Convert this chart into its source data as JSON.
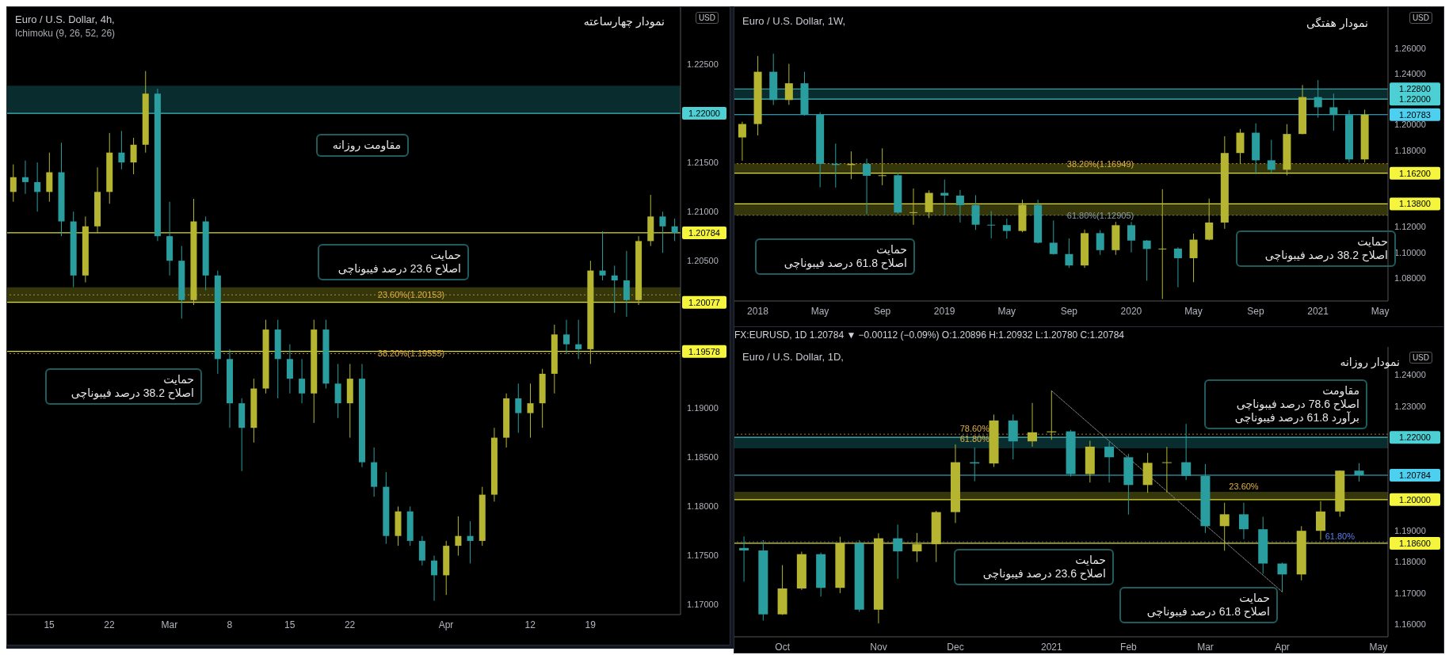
{
  "chart_data": [
    {
      "type": "candlestick",
      "title": "Euro / U.S. Dollar, 4h,",
      "subtitle": "Ichimoku (9, 26, 52, 26)",
      "ylabel": "USD",
      "annotations": [
        "نمودار چهارساعته",
        "مقاومت روزانه",
        "حمایت\nاصلاح 23.6 درصد فیبوناچی",
        "حمایت\nاصلاح 38.2 درصد فیبوناچی"
      ],
      "categories": [
        null,
        null,
        null,
        "15",
        null,
        null,
        null,
        null,
        "22",
        null,
        null,
        null,
        null,
        "Mar",
        null,
        null,
        null,
        null,
        "8",
        null,
        null,
        null,
        null,
        "15",
        null,
        null,
        null,
        null,
        "22",
        null,
        null,
        null,
        null,
        null,
        null,
        null,
        "Apr",
        null,
        null,
        null,
        null,
        null,
        null,
        "12",
        null,
        null,
        null,
        null,
        "19",
        null,
        null,
        null,
        null,
        null,
        null,
        null
      ],
      "ohlc": [
        [
          1.212,
          1.2148,
          1.211,
          1.2135
        ],
        [
          1.2135,
          1.2152,
          1.2118,
          1.213
        ],
        [
          1.213,
          1.215,
          1.21,
          1.212
        ],
        [
          1.212,
          1.216,
          1.211,
          1.214
        ],
        [
          1.214,
          1.217,
          1.2075,
          1.209
        ],
        [
          1.209,
          1.21,
          1.2023,
          1.2035
        ],
        [
          1.2035,
          1.2095,
          1.2028,
          1.2085
        ],
        [
          1.2085,
          1.2145,
          1.2078,
          1.212
        ],
        [
          1.212,
          1.218,
          1.2108,
          1.216
        ],
        [
          1.216,
          1.2182,
          1.2143,
          1.215
        ],
        [
          1.215,
          1.2175,
          1.2138,
          1.2168
        ],
        [
          1.2168,
          1.2243,
          1.216,
          1.222
        ],
        [
          1.222,
          1.2225,
          1.207,
          1.2075
        ],
        [
          1.2075,
          1.211,
          1.2035,
          1.205
        ],
        [
          1.205,
          1.2065,
          1.1991,
          1.201
        ],
        [
          1.201,
          1.2113,
          1.2005,
          1.209
        ],
        [
          1.209,
          1.2095,
          1.202,
          1.2035
        ],
        [
          1.2035,
          1.204,
          1.1935,
          1.195
        ],
        [
          1.195,
          1.196,
          1.188,
          1.1905
        ],
        [
          1.1905,
          1.191,
          1.1836,
          1.188
        ],
        [
          1.188,
          1.193,
          1.1865,
          1.192
        ],
        [
          1.192,
          1.199,
          1.1915,
          1.198
        ],
        [
          1.198,
          1.199,
          1.191,
          1.195
        ],
        [
          1.195,
          1.1965,
          1.1915,
          1.193
        ],
        [
          1.193,
          1.195,
          1.1905,
          1.1915
        ],
        [
          1.1915,
          1.199,
          1.1885,
          1.198
        ],
        [
          1.198,
          1.199,
          1.192,
          1.1925
        ],
        [
          1.1925,
          1.1945,
          1.189,
          1.1905
        ],
        [
          1.1905,
          1.1945,
          1.187,
          1.193
        ],
        [
          1.193,
          1.1945,
          1.184,
          1.1845
        ],
        [
          1.1845,
          1.186,
          1.181,
          1.182
        ],
        [
          1.182,
          1.1835,
          1.1762,
          1.177
        ],
        [
          1.177,
          1.18,
          1.176,
          1.1795
        ],
        [
          1.1795,
          1.18,
          1.176,
          1.1765
        ],
        [
          1.1765,
          1.177,
          1.174,
          1.1745
        ],
        [
          1.1745,
          1.175,
          1.1704,
          1.173
        ],
        [
          1.173,
          1.1765,
          1.171,
          1.176
        ],
        [
          1.176,
          1.179,
          1.175,
          1.177
        ],
        [
          1.177,
          1.1785,
          1.1742,
          1.1765
        ],
        [
          1.1765,
          1.182,
          1.176,
          1.1812
        ],
        [
          1.1812,
          1.188,
          1.1805,
          1.187
        ],
        [
          1.187,
          1.1915,
          1.186,
          1.191
        ],
        [
          1.191,
          1.1925,
          1.1875,
          1.1895
        ],
        [
          1.1895,
          1.1925,
          1.187,
          1.1905
        ],
        [
          1.1905,
          1.194,
          1.188,
          1.1935
        ],
        [
          1.1935,
          1.1985,
          1.1915,
          1.1975
        ],
        [
          1.1975,
          1.199,
          1.1955,
          1.1965
        ],
        [
          1.1965,
          1.199,
          1.195,
          1.196
        ],
        [
          1.196,
          1.205,
          1.1945,
          1.204
        ],
        [
          1.204,
          1.208,
          1.203,
          1.2035
        ],
        [
          1.2035,
          1.2045,
          1.1997,
          1.203
        ],
        [
          1.203,
          1.206,
          1.1993,
          1.201
        ],
        [
          1.201,
          1.2075,
          1.2005,
          1.207
        ],
        [
          1.207,
          1.2117,
          1.2065,
          1.2095
        ],
        [
          1.2095,
          1.21,
          1.2058,
          1.2085
        ],
        [
          1.2085,
          1.2093,
          1.207,
          1.20784
        ]
      ],
      "colors": [
        "#b5b531",
        "#2a9d9f",
        "#2a9d9f",
        "#b5b531",
        "#2a9d9f",
        "#2a9d9f",
        "#b5b531",
        "#b5b531",
        "#b5b531",
        "#2a9d9f",
        "#b5b531",
        "#b5b531",
        "#2a9d9f",
        "#2a9d9f",
        "#2a9d9f",
        "#b5b531",
        "#2a9d9f",
        "#2a9d9f",
        "#2a9d9f",
        "#2a9d9f",
        "#b5b531",
        "#b5b531",
        "#2a9d9f",
        "#2a9d9f",
        "#2a9d9f",
        "#b5b531",
        "#2a9d9f",
        "#2a9d9f",
        "#b5b531",
        "#2a9d9f",
        "#2a9d9f",
        "#2a9d9f",
        "#b5b531",
        "#2a9d9f",
        "#2a9d9f",
        "#2a9d9f",
        "#b5b531",
        "#b5b531",
        "#2a9d9f",
        "#b5b531",
        "#b5b531",
        "#b5b531",
        "#2a9d9f",
        "#b5b531",
        "#b5b531",
        "#b5b531",
        "#2a9d9f",
        "#2a9d9f",
        "#b5b531",
        "#2a9d9f",
        "#2a9d9f",
        "#2a9d9f",
        "#b5b531",
        "#b5b531",
        "#2a9d9f",
        "#2a9d9f"
      ],
      "ylim": [
        1.169,
        1.2308
      ],
      "yticks": [
        {
          "value": 1.17,
          "label": "1.17000"
        },
        {
          "value": 1.175,
          "label": "1.17500"
        },
        {
          "value": 1.18,
          "label": "1.18000"
        },
        {
          "value": 1.185,
          "label": "1.18500"
        },
        {
          "value": 1.19,
          "label": "1.19000"
        },
        {
          "value": 1.205,
          "label": "1.20500"
        },
        {
          "value": 1.21,
          "label": "1.21000"
        },
        {
          "value": 1.215,
          "label": "1.21500"
        },
        {
          "value": 1.225,
          "label": "1.22500"
        }
      ],
      "bands": [
        {
          "axis": "y",
          "from": 1.22,
          "to": 1.2228,
          "color": "#0f4a4c"
        },
        {
          "axis": "y",
          "from": 1.20077,
          "to": 1.2023,
          "color": "#5a5a12"
        }
      ],
      "ref_lines": [
        {
          "axis": "y",
          "value": 1.22,
          "label": "1.22000",
          "color": "#4dd0d4",
          "line_style": "solid"
        },
        {
          "axis": "y",
          "value": 1.20784,
          "label": "1.20784",
          "color": "#f5f53d",
          "line_style": "solid"
        },
        {
          "axis": "y",
          "value": 1.20077,
          "label": "1.20077",
          "color": "#f5f53d",
          "line_style": "solid"
        },
        {
          "axis": "y",
          "value": 1.19578,
          "label": "1.19578",
          "color": "#f5f53d",
          "line_style": "solid"
        },
        {
          "axis": "y",
          "value": 1.20153,
          "label": "23.60%(1.20153)",
          "color": "#e0b040",
          "line_style": "dotted"
        },
        {
          "axis": "y",
          "value": 1.19555,
          "label": "38.20%(1.19555)",
          "color": "#e0b040",
          "line_style": "dotted"
        }
      ]
    },
    {
      "type": "candlestick",
      "title": "Euro / U.S. Dollar, 1W,",
      "ylabel": "USD",
      "annotations": [
        "نمودار هفتگی",
        "حمایت\nاصلاح 61.8 درصد فیبوناچی",
        "حمایت\nاصلاح 38.2 درصد فیبوناچی"
      ],
      "categories": [
        null,
        "2018",
        null,
        null,
        null,
        "May",
        null,
        null,
        null,
        "Sep",
        null,
        null,
        null,
        "2019",
        null,
        null,
        null,
        "May",
        null,
        null,
        null,
        "Sep",
        null,
        null,
        null,
        "2020",
        null,
        null,
        null,
        "May",
        null,
        null,
        null,
        "Sep",
        null,
        null,
        null,
        "2021",
        null,
        null,
        null,
        "May"
      ],
      "ohlc": [
        [
          1.19,
          1.2023,
          1.1718,
          1.2005
        ],
        [
          1.2005,
          1.2537,
          1.1916,
          1.2414
        ],
        [
          1.2414,
          1.2556,
          1.2154,
          1.2193
        ],
        [
          1.2193,
          1.2476,
          1.2155,
          1.2324
        ],
        [
          1.2324,
          1.2414,
          1.2071,
          1.2078
        ],
        [
          1.2078,
          1.2097,
          1.151,
          1.1693
        ],
        [
          1.1693,
          1.1852,
          1.1508,
          1.1684
        ],
        [
          1.1684,
          1.1791,
          1.1573,
          1.1693
        ],
        [
          1.1693,
          1.1734,
          1.1301,
          1.16
        ],
        [
          1.16,
          1.1815,
          1.1526,
          1.1604
        ],
        [
          1.1604,
          1.1625,
          1.1302,
          1.1312
        ],
        [
          1.1312,
          1.15,
          1.1216,
          1.1315
        ],
        [
          1.1315,
          1.1486,
          1.1269,
          1.1466
        ],
        [
          1.1466,
          1.157,
          1.1289,
          1.1445
        ],
        [
          1.1445,
          1.1489,
          1.1234,
          1.137
        ],
        [
          1.137,
          1.1448,
          1.1176,
          1.1217
        ],
        [
          1.1217,
          1.1324,
          1.111,
          1.1214
        ],
        [
          1.1214,
          1.1265,
          1.1107,
          1.1168
        ],
        [
          1.1168,
          1.1412,
          1.1158,
          1.1372
        ],
        [
          1.1372,
          1.1412,
          1.107,
          1.1076
        ],
        [
          1.1076,
          1.125,
          1.0983,
          1.0987
        ],
        [
          1.0987,
          1.111,
          1.0879,
          1.0898
        ],
        [
          1.0898,
          1.1179,
          1.0879,
          1.1151
        ],
        [
          1.1151,
          1.1175,
          1.0981,
          1.1018
        ],
        [
          1.1018,
          1.1239,
          1.0981,
          1.1213
        ],
        [
          1.1213,
          1.1239,
          1.1,
          1.1093
        ],
        [
          1.1093,
          1.1097,
          1.0778,
          1.1027
        ],
        [
          1.1027,
          1.1495,
          1.0636,
          1.103
        ],
        [
          1.103,
          1.104,
          1.0727,
          1.0955
        ],
        [
          1.0955,
          1.1147,
          1.0767,
          1.11
        ],
        [
          1.11,
          1.1422,
          1.1094,
          1.1234
        ],
        [
          1.1234,
          1.1909,
          1.1185,
          1.1778
        ],
        [
          1.1778,
          1.1966,
          1.1696,
          1.1937
        ],
        [
          1.1937,
          1.2011,
          1.1612,
          1.1721
        ],
        [
          1.1721,
          1.1881,
          1.1622,
          1.1647
        ],
        [
          1.1647,
          1.2004,
          1.1603,
          1.1927
        ],
        [
          1.1927,
          1.231,
          1.1925,
          1.2216
        ],
        [
          1.2216,
          1.2349,
          1.2054,
          1.2136
        ],
        [
          1.2136,
          1.2243,
          1.1952,
          1.2076
        ],
        [
          1.2076,
          1.2114,
          1.1704,
          1.1728
        ],
        [
          1.1728,
          1.2117,
          1.1704,
          1.20783
        ],
        null
      ],
      "colors": [
        "#b5b531",
        "#b5b531",
        "#2a9d9f",
        "#b5b531",
        "#2a9d9f",
        "#2a9d9f",
        "#2a9d9f",
        "#b5b531",
        "#2a9d9f",
        "#b5b531",
        "#2a9d9f",
        "#b5b531",
        "#b5b531",
        "#2a9d9f",
        "#2a9d9f",
        "#2a9d9f",
        "#2a9d9f",
        "#2a9d9f",
        "#b5b531",
        "#2a9d9f",
        "#2a9d9f",
        "#2a9d9f",
        "#b5b531",
        "#2a9d9f",
        "#b5b531",
        "#2a9d9f",
        "#2a9d9f",
        "#b5b531",
        "#2a9d9f",
        "#b5b531",
        "#b5b531",
        "#b5b531",
        "#b5b531",
        "#2a9d9f",
        "#2a9d9f",
        "#b5b531",
        "#b5b531",
        "#2a9d9f",
        "#2a9d9f",
        "#2a9d9f",
        "#b5b531",
        null
      ],
      "ylim": [
        1.062,
        1.292
      ],
      "yticks": [
        {
          "value": 1.08,
          "label": "1.08000"
        },
        {
          "value": 1.1,
          "label": "1.10000"
        },
        {
          "value": 1.12,
          "label": "1.12000"
        },
        {
          "value": 1.18,
          "label": "1.18000"
        },
        {
          "value": 1.2,
          "label": "1.20000"
        },
        {
          "value": 1.24,
          "label": "1.24000"
        },
        {
          "value": 1.26,
          "label": "1.26000"
        }
      ],
      "bands": [
        {
          "axis": "y",
          "from": 1.22,
          "to": 1.228,
          "color": "#0f4a4c"
        },
        {
          "axis": "y",
          "from": 1.162,
          "to": 1.16949,
          "color": "#5a5a12"
        },
        {
          "axis": "y",
          "from": 1.129,
          "to": 1.138,
          "color": "#5a5a12"
        }
      ],
      "ref_lines": [
        {
          "axis": "y",
          "value": 1.228,
          "label": "1.22800",
          "color": "#4dd0d4",
          "line_style": "solid"
        },
        {
          "axis": "y",
          "value": 1.22,
          "label": "1.22000",
          "color": "#4dd0d4",
          "line_style": "solid"
        },
        {
          "axis": "y",
          "value": 1.20783,
          "label": "1.20783",
          "color": "#4dd0f0",
          "line_style": "solid"
        },
        {
          "axis": "y",
          "value": 1.162,
          "label": "1.16200",
          "color": "#f5f53d",
          "line_style": "solid"
        },
        {
          "axis": "y",
          "value": 1.138,
          "label": "1.13800",
          "color": "#f5f53d",
          "line_style": "solid"
        },
        {
          "axis": "y",
          "value": 1.16949,
          "label": "38.20%(1.16949)",
          "color": "#e0b040",
          "line_style": "dotted"
        },
        {
          "axis": "y",
          "value": 1.12905,
          "label": "61.80%(1.12905)",
          "color": "#8a9aa0",
          "line_style": "dotted"
        }
      ]
    },
    {
      "type": "candlestick",
      "title": "Euro / U.S. Dollar, 1D,",
      "ylabel": "USD",
      "annotations": [
        "FX:EURUSD, 1D 1.20784 ▼ −0.00112 (−0.09%) O:1.20896 H:1.20932 L:1.20780 C:1.20784",
        "نمودار روزانه",
        "مقاومت\nاصلاح 78.6 درصد فیبوناچی\nبرآورد 61.8 درصد فیبوناچی",
        "حمایت\nاصلاح 23.6 درصد فیبوناچی",
        "حمایت\nاصلاح 61.8 درصد فیبوناچی",
        {
          "text": "78.60%",
          "y": 1.221
        },
        {
          "text": "61.80%",
          "y": 1.2178
        },
        {
          "text": "23.60%",
          "y": 1.2025
        },
        {
          "text": "61.80%",
          "y": 1.1865
        }
      ],
      "categories": [
        null,
        null,
        "Oct",
        null,
        null,
        null,
        null,
        "Nov",
        null,
        null,
        null,
        "Dec",
        null,
        null,
        null,
        null,
        "2021",
        null,
        null,
        null,
        "Feb",
        null,
        null,
        null,
        "Mar",
        null,
        null,
        null,
        "Apr",
        null,
        null,
        null,
        null,
        "May"
      ],
      "ohlc": [
        [
          1.1845,
          1.1882,
          1.1737,
          1.1837
        ],
        [
          1.1837,
          1.187,
          1.1612,
          1.1632
        ],
        [
          1.1632,
          1.179,
          1.163,
          1.1715
        ],
        [
          1.1715,
          1.1833,
          1.171,
          1.1825
        ],
        [
          1.1825,
          1.183,
          1.1689,
          1.1717
        ],
        [
          1.1717,
          1.1881,
          1.17,
          1.186
        ],
        [
          1.186,
          1.187,
          1.164,
          1.1647
        ],
        [
          1.1647,
          1.1892,
          1.1603,
          1.1876
        ],
        [
          1.1876,
          1.192,
          1.1746,
          1.1834
        ],
        [
          1.1834,
          1.1893,
          1.18,
          1.1857
        ],
        [
          1.1857,
          1.1964,
          1.18,
          1.196
        ],
        [
          1.196,
          1.2177,
          1.1925,
          1.212
        ],
        [
          1.212,
          1.2167,
          1.2059,
          1.2116
        ],
        [
          1.2116,
          1.2273,
          1.2105,
          1.2254
        ],
        [
          1.2254,
          1.2273,
          1.2129,
          1.2187
        ],
        [
          1.2187,
          1.231,
          1.217,
          1.2216
        ],
        [
          1.2216,
          1.2349,
          1.2192,
          1.2219
        ],
        [
          1.2219,
          1.2224,
          1.2074,
          1.2082
        ],
        [
          1.2082,
          1.2189,
          1.2055,
          1.217
        ],
        [
          1.217,
          1.2185,
          1.2055,
          1.2136
        ],
        [
          1.2136,
          1.2147,
          1.1952,
          1.2047
        ],
        [
          1.2047,
          1.215,
          1.2022,
          1.2118
        ],
        [
          1.2118,
          1.2169,
          1.2023,
          1.212
        ],
        [
          1.212,
          1.2243,
          1.2063,
          1.2076
        ],
        [
          1.2076,
          1.2114,
          1.1893,
          1.1915
        ],
        [
          1.1915,
          1.199,
          1.1836,
          1.1953
        ],
        [
          1.1953,
          1.199,
          1.1873,
          1.1905
        ],
        [
          1.1905,
          1.1945,
          1.1762,
          1.1795
        ],
        [
          1.1795,
          1.1798,
          1.1704,
          1.176
        ],
        [
          1.176,
          1.1915,
          1.1741,
          1.19
        ],
        [
          1.19,
          1.1995,
          1.1871,
          1.1962
        ],
        [
          1.1962,
          1.2094,
          1.1945,
          1.2093
        ],
        [
          1.2093,
          1.2117,
          1.2058,
          1.20784
        ],
        null
      ],
      "colors": [
        "#2a9d9f",
        "#2a9d9f",
        "#b5b531",
        "#b5b531",
        "#2a9d9f",
        "#b5b531",
        "#2a9d9f",
        "#b5b531",
        "#2a9d9f",
        "#b5b531",
        "#b5b531",
        "#b5b531",
        "#2a9d9f",
        "#b5b531",
        "#2a9d9f",
        "#b5b531",
        "#b5b531",
        "#2a9d9f",
        "#b5b531",
        "#2a9d9f",
        "#2a9d9f",
        "#b5b531",
        "#b5b531",
        "#2a9d9f",
        "#2a9d9f",
        "#b5b531",
        "#2a9d9f",
        "#2a9d9f",
        "#2a9d9f",
        "#b5b531",
        "#b5b531",
        "#b5b531",
        "#2a9d9f",
        null
      ],
      "series": [
        {
          "type": "line",
          "color": "#8a8a8a",
          "line_style": "dotted",
          "values": [
            null,
            null,
            null,
            null,
            null,
            null,
            null,
            null,
            null,
            null,
            null,
            null,
            null,
            null,
            null,
            null,
            1.2349,
            null,
            null,
            null,
            null,
            null,
            null,
            null,
            null,
            null,
            null,
            null,
            1.1704,
            null,
            null,
            null,
            null,
            null
          ]
        }
      ],
      "ylim": [
        1.156,
        1.249
      ],
      "yticks": [
        {
          "value": 1.16,
          "label": "1.16000"
        },
        {
          "value": 1.17,
          "label": "1.17000"
        },
        {
          "value": 1.18,
          "label": "1.18000"
        },
        {
          "value": 1.19,
          "label": "1.19000"
        },
        {
          "value": 1.23,
          "label": "1.23000"
        },
        {
          "value": 1.24,
          "label": "1.24000"
        }
      ],
      "bands": [
        {
          "axis": "y",
          "from": 1.2165,
          "to": 1.22,
          "color": "#0f4a4c"
        },
        {
          "axis": "y",
          "from": 1.2,
          "to": 1.2025,
          "color": "#5a5a12"
        }
      ],
      "ref_lines": [
        {
          "axis": "y",
          "value": 1.22,
          "label": "1.22000",
          "color": "#4dd0d4",
          "line_style": "solid"
        },
        {
          "axis": "y",
          "value": 1.20784,
          "label": "1.20784",
          "color": "#4dd0f0",
          "line_style": "solid"
        },
        {
          "axis": "y",
          "value": 1.2,
          "label": "1.20000",
          "color": "#f5f53d",
          "line_style": "solid"
        },
        {
          "axis": "y",
          "value": 1.186,
          "label": "1.18600",
          "color": "#f5f53d",
          "line_style": "solid"
        },
        {
          "axis": "y",
          "value": 1.221,
          "color": "#e0b040",
          "line_style": "dotted"
        },
        {
          "axis": "y",
          "value": 1.1865,
          "color": "#5a7cf0",
          "line_style": "dotted"
        }
      ]
    }
  ]
}
